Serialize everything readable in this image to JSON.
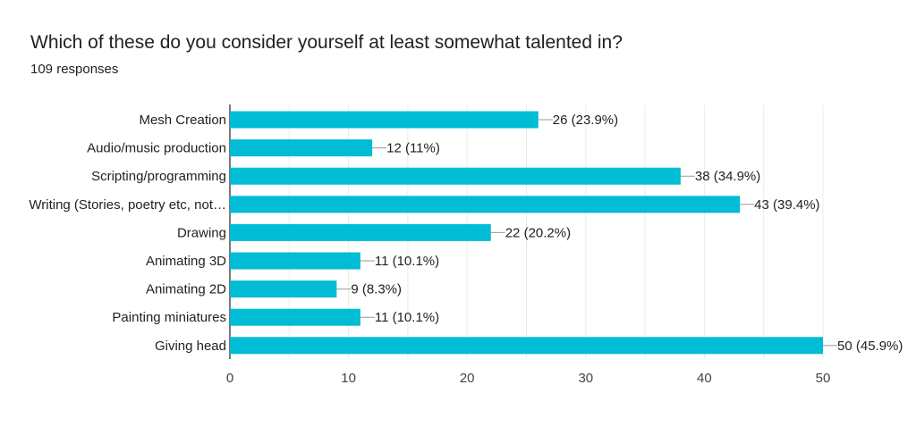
{
  "chart_data": {
    "type": "bar",
    "orientation": "horizontal",
    "title": "Which of these do you consider yourself at least somewhat talented in?",
    "subtitle": "109 responses",
    "categories": [
      "Mesh Creation",
      "Audio/music production",
      "Scripting/programming",
      "Writing (Stories, poetry etc, not…",
      "Drawing",
      "Animating 3D",
      "Animating 2D",
      "Painting miniatures",
      "Giving head"
    ],
    "values": [
      26,
      12,
      38,
      43,
      22,
      11,
      9,
      11,
      50
    ],
    "labels": [
      "26 (23.9%)",
      "12 (11%)",
      "38 (34.9%)",
      "43 (39.4%)",
      "22 (20.2%)",
      "11 (10.1%)",
      "9 (8.3%)",
      "11 (10.1%)",
      "50 (45.9%)"
    ],
    "xlim": [
      0,
      50
    ],
    "xticks": [
      "0",
      "10",
      "20",
      "30",
      "40",
      "50"
    ],
    "grid": true,
    "bar_color": "#00bcd4"
  }
}
